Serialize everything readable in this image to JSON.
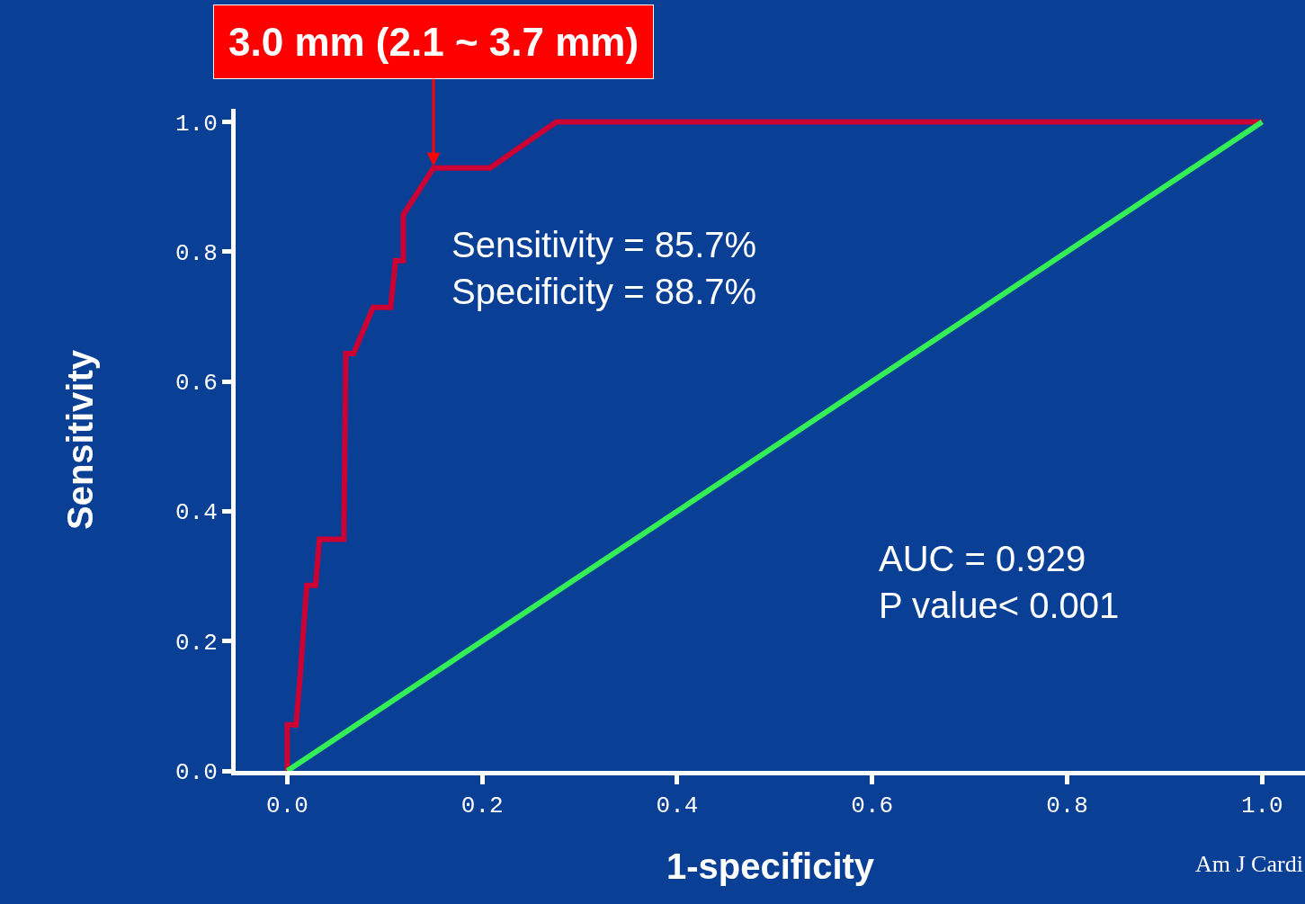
{
  "chart_data": {
    "type": "line",
    "xlabel": "1-specificity",
    "ylabel": "Sensitivity",
    "xlim": [
      -0.053,
      1.044
    ],
    "ylim": [
      0,
      1.02
    ],
    "xticks": [
      {
        "value": 0,
        "label": "0.0"
      },
      {
        "value": 0.2,
        "label": "0.2"
      },
      {
        "value": 0.4,
        "label": "0.4"
      },
      {
        "value": 0.6,
        "label": "0.6"
      },
      {
        "value": 0.8,
        "label": "0.8"
      },
      {
        "value": 1,
        "label": "1.0"
      }
    ],
    "yticks": [
      {
        "value": 0,
        "label": "0.0"
      },
      {
        "value": 0.2,
        "label": "0.2"
      },
      {
        "value": 0.4,
        "label": "0.4"
      },
      {
        "value": 0.6,
        "label": "0.6"
      },
      {
        "value": 0.8,
        "label": "0.8"
      },
      {
        "value": 1,
        "label": "1.0"
      }
    ],
    "grid": false,
    "legend": false,
    "series": [
      {
        "color": "#cc0033",
        "x": [
          0,
          0,
          0.009,
          0.013,
          0.02,
          0.029,
          0.033,
          0.058,
          0.06,
          0.068,
          0.088,
          0.106,
          0.111,
          0.119,
          0.119,
          0.15,
          0.208,
          0.276,
          1
        ],
        "values": [
          0,
          0.071,
          0.071,
          0.143,
          0.286,
          0.286,
          0.357,
          0.357,
          0.643,
          0.643,
          0.714,
          0.714,
          0.786,
          0.786,
          0.857,
          0.929,
          0.929,
          1,
          1
        ]
      },
      {
        "color": "#33ee55",
        "x": [
          0,
          1
        ],
        "values": [
          0,
          1
        ]
      }
    ],
    "annotations": [
      {
        "text": "3.0 mm (2.1 ~ 3.7 mm)",
        "x": 0.15,
        "y": 0.929
      },
      "Sensitivity = 85.7%\nSpecificity = 88.7%",
      "AUC = 0.929\nP value< 0.001",
      "Am J Cardi"
    ]
  }
}
